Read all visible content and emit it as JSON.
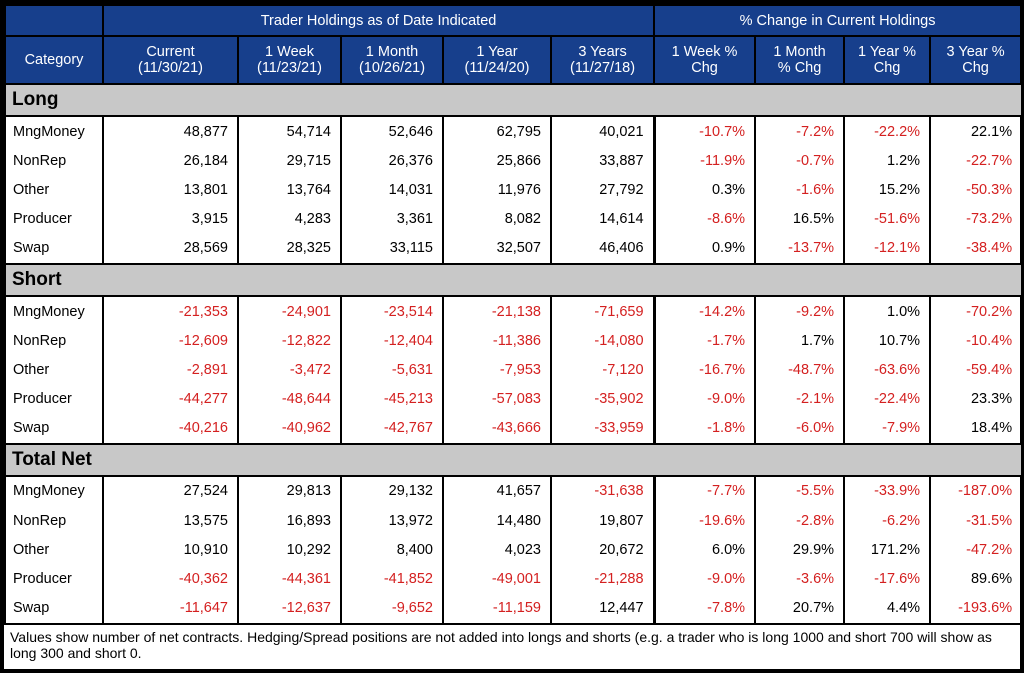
{
  "header": {
    "group_left": "Trader Holdings as of Date Indicated",
    "group_right": "% Change in Current Holdings",
    "category": "Category",
    "columns": [
      [
        "Current",
        "(11/30/21)"
      ],
      [
        "1 Week",
        "(11/23/21)"
      ],
      [
        "1 Month",
        "(10/26/21)"
      ],
      [
        "1 Year",
        "(11/24/20)"
      ],
      [
        "3 Years",
        "(11/27/18)"
      ],
      [
        "1 Week %",
        "Chg"
      ],
      [
        "1 Month",
        "% Chg"
      ],
      [
        "1 Year %",
        "Chg"
      ],
      [
        "3 Year %",
        "Chg"
      ]
    ]
  },
  "sections": [
    {
      "title": "Long",
      "rows": [
        {
          "category": "MngMoney",
          "values": [
            "48,877",
            "54,714",
            "52,646",
            "62,795",
            "40,021",
            "-10.7%",
            "-7.2%",
            "-22.2%",
            "22.1%"
          ]
        },
        {
          "category": "NonRep",
          "values": [
            "26,184",
            "29,715",
            "26,376",
            "25,866",
            "33,887",
            "-11.9%",
            "-0.7%",
            "1.2%",
            "-22.7%"
          ]
        },
        {
          "category": "Other",
          "values": [
            "13,801",
            "13,764",
            "14,031",
            "11,976",
            "27,792",
            "0.3%",
            "-1.6%",
            "15.2%",
            "-50.3%"
          ]
        },
        {
          "category": "Producer",
          "values": [
            "3,915",
            "4,283",
            "3,361",
            "8,082",
            "14,614",
            "-8.6%",
            "16.5%",
            "-51.6%",
            "-73.2%"
          ]
        },
        {
          "category": "Swap",
          "values": [
            "28,569",
            "28,325",
            "33,115",
            "32,507",
            "46,406",
            "0.9%",
            "-13.7%",
            "-12.1%",
            "-38.4%"
          ]
        }
      ]
    },
    {
      "title": "Short",
      "rows": [
        {
          "category": "MngMoney",
          "values": [
            "-21,353",
            "-24,901",
            "-23,514",
            "-21,138",
            "-71,659",
            "-14.2%",
            "-9.2%",
            "1.0%",
            "-70.2%"
          ]
        },
        {
          "category": "NonRep",
          "values": [
            "-12,609",
            "-12,822",
            "-12,404",
            "-11,386",
            "-14,080",
            "-1.7%",
            "1.7%",
            "10.7%",
            "-10.4%"
          ]
        },
        {
          "category": "Other",
          "values": [
            "-2,891",
            "-3,472",
            "-5,631",
            "-7,953",
            "-7,120",
            "-16.7%",
            "-48.7%",
            "-63.6%",
            "-59.4%"
          ]
        },
        {
          "category": "Producer",
          "values": [
            "-44,277",
            "-48,644",
            "-45,213",
            "-57,083",
            "-35,902",
            "-9.0%",
            "-2.1%",
            "-22.4%",
            "23.3%"
          ]
        },
        {
          "category": "Swap",
          "values": [
            "-40,216",
            "-40,962",
            "-42,767",
            "-43,666",
            "-33,959",
            "-1.8%",
            "-6.0%",
            "-7.9%",
            "18.4%"
          ]
        }
      ]
    },
    {
      "title": "Total Net",
      "rows": [
        {
          "category": "MngMoney",
          "values": [
            "27,524",
            "29,813",
            "29,132",
            "41,657",
            "-31,638",
            "-7.7%",
            "-5.5%",
            "-33.9%",
            "-187.0%"
          ]
        },
        {
          "category": "NonRep",
          "values": [
            "13,575",
            "16,893",
            "13,972",
            "14,480",
            "19,807",
            "-19.6%",
            "-2.8%",
            "-6.2%",
            "-31.5%"
          ]
        },
        {
          "category": "Other",
          "values": [
            "10,910",
            "10,292",
            "8,400",
            "4,023",
            "20,672",
            "6.0%",
            "29.9%",
            "171.2%",
            "-47.2%"
          ]
        },
        {
          "category": "Producer",
          "values": [
            "-40,362",
            "-44,361",
            "-41,852",
            "-49,001",
            "-21,288",
            "-9.0%",
            "-3.6%",
            "-17.6%",
            "89.6%"
          ]
        },
        {
          "category": "Swap",
          "values": [
            "-11,647",
            "-12,637",
            "-9,652",
            "-11,159",
            "12,447",
            "-7.8%",
            "20.7%",
            "4.4%",
            "-193.6%"
          ]
        }
      ]
    }
  ],
  "footnote": "Values show number of net contracts. Hedging/Spread positions are not added into longs and shorts (e.g. a trader who is long 1000 and short 700 will show as long 300 and short 0.",
  "colors": {
    "header_bg": "#173f8c",
    "section_bg": "#c8c8c8",
    "negative": "#d42020"
  }
}
